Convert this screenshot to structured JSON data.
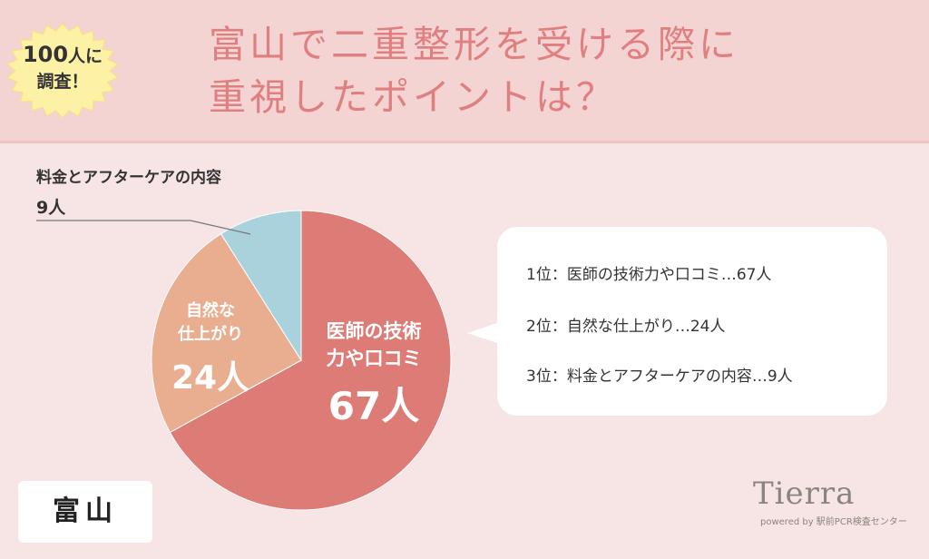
{
  "badge": {
    "number": "100",
    "line1_suffix": "人に",
    "line2": "調査！"
  },
  "title": {
    "line1": "富山で二重整形を受ける際に",
    "line2": "重視したポイントは？"
  },
  "chart_data": {
    "type": "pie",
    "slices": [
      {
        "label_lines": [
          "医師の技術",
          "力や口コミ"
        ],
        "value": 67,
        "value_text": "67人",
        "color": "#dd7c77"
      },
      {
        "label_lines": [
          "自然な",
          "仕上がり"
        ],
        "value": 24,
        "value_text": "24人",
        "color": "#e9ae8f"
      },
      {
        "label_lines": [
          "料金とアフターケアの内容"
        ],
        "value": 9,
        "value_text": "9人",
        "color": "#a9d2dc"
      }
    ]
  },
  "ranking": {
    "items": [
      "1位：医師の技術力や口コミ…67人",
      "2位：自然な仕上がり…24人",
      "3位：料金とアフターケアの内容…9人"
    ]
  },
  "prefecture": "富山",
  "logo": {
    "name": "Tierra",
    "subtitle": "powered by 駅前PCR検査センター"
  }
}
